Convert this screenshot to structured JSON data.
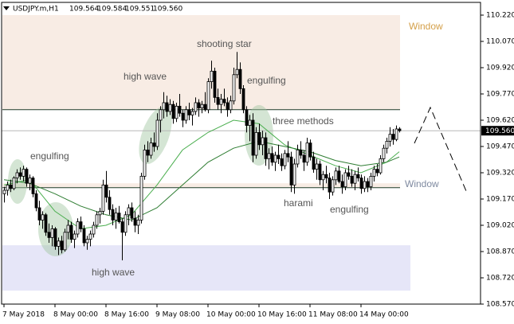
{
  "chart_data": {
    "type": "candlestick",
    "title": "USDJPY.m,H1",
    "header_values": [
      "109.564",
      "109.584",
      "109.551",
      "109.560"
    ],
    "ylim": [
      108.57,
      110.22
    ],
    "yticks": [
      {
        "value": 110.22,
        "label": "110.220"
      },
      {
        "value": 110.07,
        "label": "110.070"
      },
      {
        "value": 109.92,
        "label": "109.920"
      },
      {
        "value": 109.77,
        "label": "109.770"
      },
      {
        "value": 109.62,
        "label": "109.620"
      },
      {
        "value": 109.47,
        "label": "109.470"
      },
      {
        "value": 109.32,
        "label": "109.320"
      },
      {
        "value": 109.17,
        "label": "109.170"
      },
      {
        "value": 109.02,
        "label": "109.020"
      },
      {
        "value": 108.87,
        "label": "108.870"
      },
      {
        "value": 108.72,
        "label": "108.720"
      },
      {
        "value": 108.57,
        "label": "108.570"
      }
    ],
    "current_price": {
      "value": 109.56,
      "label": "109.560"
    },
    "up_color": "#ffffff",
    "down_color": "#000000",
    "categories": [
      "7 May 2018",
      null,
      null,
      null,
      null,
      null,
      null,
      null,
      null,
      null,
      null,
      null,
      null,
      null,
      null,
      null,
      "8 May 00:00",
      null,
      null,
      null,
      null,
      null,
      null,
      null,
      null,
      null,
      null,
      null,
      null,
      null,
      null,
      null,
      "8 May 16:00",
      null,
      null,
      null,
      null,
      null,
      null,
      null,
      null,
      null,
      null,
      null,
      null,
      null,
      null,
      null,
      "9 May 08:00",
      null,
      null,
      null,
      null,
      null,
      null,
      null,
      null,
      null,
      null,
      null,
      null,
      null,
      null,
      null,
      "10 May 00:00",
      null,
      null,
      null,
      null,
      null,
      null,
      null,
      null,
      null,
      null,
      null,
      null,
      null,
      null,
      null,
      "10 May 16:00",
      null,
      null,
      null,
      null,
      null,
      null,
      null,
      null,
      null,
      null,
      null,
      null,
      null,
      null,
      null,
      "11 May 08:00",
      null,
      null,
      null,
      null,
      null,
      null,
      null,
      null,
      null,
      null,
      null,
      null,
      null,
      null,
      null,
      "14 May 00:00",
      null,
      null,
      null,
      null,
      null,
      null,
      null,
      null,
      null,
      null,
      null,
      null
    ],
    "candles": [
      [
        109.2,
        109.24,
        109.15,
        109.22
      ],
      [
        109.22,
        109.27,
        109.19,
        109.25
      ],
      [
        109.25,
        109.28,
        109.21,
        109.23
      ],
      [
        109.23,
        109.3,
        109.22,
        109.29
      ],
      [
        109.29,
        109.34,
        109.26,
        109.32
      ],
      [
        109.32,
        109.35,
        109.28,
        109.3
      ],
      [
        109.3,
        109.36,
        109.27,
        109.34
      ],
      [
        109.34,
        109.35,
        109.24,
        109.26
      ],
      [
        109.26,
        109.31,
        109.22,
        109.29
      ],
      [
        109.29,
        109.3,
        109.18,
        109.2
      ],
      [
        109.2,
        109.22,
        109.1,
        109.12
      ],
      [
        109.12,
        109.16,
        109.02,
        109.05
      ],
      [
        109.05,
        109.1,
        109.0,
        109.08
      ],
      [
        109.08,
        109.09,
        108.96,
        108.98
      ],
      [
        108.98,
        109.03,
        108.92,
        108.95
      ],
      [
        108.95,
        109.02,
        108.9,
        109.0
      ],
      [
        109.0,
        109.01,
        108.88,
        108.9
      ],
      [
        108.9,
        108.95,
        108.85,
        108.93
      ],
      [
        108.93,
        108.96,
        108.86,
        108.88
      ],
      [
        108.88,
        109.0,
        108.87,
        108.98
      ],
      [
        108.98,
        109.05,
        108.94,
        109.02
      ],
      [
        109.02,
        109.04,
        108.92,
        108.94
      ],
      [
        108.94,
        108.99,
        108.89,
        108.97
      ],
      [
        108.97,
        109.06,
        108.95,
        109.04
      ],
      [
        109.04,
        109.07,
        108.98,
        109.0
      ],
      [
        109.0,
        109.02,
        108.9,
        108.92
      ],
      [
        108.92,
        108.96,
        108.88,
        108.94
      ],
      [
        108.94,
        108.99,
        108.9,
        108.97
      ],
      [
        108.97,
        109.04,
        108.95,
        109.02
      ],
      [
        109.02,
        109.1,
        109.0,
        109.08
      ],
      [
        109.08,
        109.12,
        109.03,
        109.1
      ],
      [
        109.1,
        109.28,
        109.08,
        109.25
      ],
      [
        109.25,
        109.33,
        109.15,
        109.18
      ],
      [
        109.18,
        109.22,
        109.08,
        109.11
      ],
      [
        109.11,
        109.14,
        109.02,
        109.05
      ],
      [
        109.05,
        109.12,
        109.0,
        109.09
      ],
      [
        109.09,
        109.13,
        109.03,
        109.04
      ],
      [
        109.04,
        109.06,
        108.82,
        108.98
      ],
      [
        108.98,
        109.1,
        108.96,
        109.08
      ],
      [
        109.08,
        109.14,
        109.02,
        109.12
      ],
      [
        109.12,
        109.15,
        109.04,
        109.06
      ],
      [
        109.06,
        109.1,
        108.98,
        109.02
      ],
      [
        109.02,
        109.08,
        108.97,
        109.05
      ],
      [
        109.05,
        109.32,
        109.03,
        109.3
      ],
      [
        109.3,
        109.48,
        109.28,
        109.45
      ],
      [
        109.45,
        109.5,
        109.38,
        109.42
      ],
      [
        109.42,
        109.52,
        109.4,
        109.49
      ],
      [
        109.49,
        109.55,
        109.44,
        109.47
      ],
      [
        109.47,
        109.66,
        109.45,
        109.62
      ],
      [
        109.62,
        109.7,
        109.55,
        109.68
      ],
      [
        109.68,
        109.78,
        109.63,
        109.72
      ],
      [
        109.72,
        109.76,
        109.64,
        109.67
      ],
      [
        109.67,
        109.74,
        109.65,
        109.71
      ],
      [
        109.71,
        109.73,
        109.6,
        109.63
      ],
      [
        109.63,
        109.72,
        109.61,
        109.7
      ],
      [
        109.7,
        109.77,
        109.64,
        109.66
      ],
      [
        109.66,
        109.68,
        109.58,
        109.62
      ],
      [
        109.62,
        109.7,
        109.6,
        109.68
      ],
      [
        109.68,
        109.72,
        109.62,
        109.65
      ],
      [
        109.65,
        109.69,
        109.59,
        109.67
      ],
      [
        109.67,
        109.75,
        109.65,
        109.72
      ],
      [
        109.72,
        109.74,
        109.64,
        109.69
      ],
      [
        109.69,
        109.73,
        109.66,
        109.71
      ],
      [
        109.71,
        109.78,
        109.67,
        109.68
      ],
      [
        109.68,
        109.86,
        109.66,
        109.84
      ],
      [
        109.84,
        109.96,
        109.8,
        109.9
      ],
      [
        109.9,
        109.92,
        109.72,
        109.75
      ],
      [
        109.75,
        109.8,
        109.68,
        109.71
      ],
      [
        109.71,
        109.77,
        109.66,
        109.74
      ],
      [
        109.74,
        109.8,
        109.7,
        109.72
      ],
      [
        109.72,
        109.75,
        109.64,
        109.68
      ],
      [
        109.68,
        109.76,
        109.66,
        109.73
      ],
      [
        109.73,
        109.92,
        109.71,
        109.88
      ],
      [
        109.88,
        110.01,
        109.86,
        109.91
      ],
      [
        109.91,
        109.95,
        109.77,
        109.8
      ],
      [
        109.8,
        109.82,
        109.66,
        109.68
      ],
      [
        109.68,
        109.7,
        109.55,
        109.59
      ],
      [
        109.59,
        109.65,
        109.5,
        109.62
      ],
      [
        109.62,
        109.66,
        109.38,
        109.42
      ],
      [
        109.42,
        109.58,
        109.4,
        109.55
      ],
      [
        109.55,
        109.6,
        109.45,
        109.48
      ],
      [
        109.48,
        109.56,
        109.42,
        109.52
      ],
      [
        109.52,
        109.55,
        109.36,
        109.4
      ],
      [
        109.4,
        109.46,
        109.34,
        109.43
      ],
      [
        109.43,
        109.47,
        109.36,
        109.38
      ],
      [
        109.38,
        109.44,
        109.33,
        109.42
      ],
      [
        109.42,
        109.48,
        109.37,
        109.4
      ],
      [
        109.4,
        109.43,
        109.33,
        109.36
      ],
      [
        109.36,
        109.45,
        109.34,
        109.43
      ],
      [
        109.43,
        109.5,
        109.38,
        109.41
      ],
      [
        109.41,
        109.44,
        109.21,
        109.25
      ],
      [
        109.25,
        109.4,
        109.2,
        109.37
      ],
      [
        109.37,
        109.48,
        109.35,
        109.45
      ],
      [
        109.45,
        109.5,
        109.4,
        109.42
      ],
      [
        109.42,
        109.45,
        109.33,
        109.38
      ],
      [
        109.38,
        109.52,
        109.36,
        109.49
      ],
      [
        109.49,
        109.51,
        109.39,
        109.41
      ],
      [
        109.41,
        109.44,
        109.32,
        109.34
      ],
      [
        109.34,
        109.4,
        109.28,
        109.37
      ],
      [
        109.37,
        109.39,
        109.25,
        109.28
      ],
      [
        109.28,
        109.33,
        109.22,
        109.31
      ],
      [
        109.31,
        109.36,
        109.26,
        109.29
      ],
      [
        109.29,
        109.32,
        109.17,
        109.21
      ],
      [
        109.21,
        109.3,
        109.19,
        109.28
      ],
      [
        109.28,
        109.35,
        109.25,
        109.33
      ],
      [
        109.33,
        109.36,
        109.26,
        109.27
      ],
      [
        109.27,
        109.31,
        109.2,
        109.24
      ],
      [
        109.24,
        109.34,
        109.22,
        109.32
      ],
      [
        109.32,
        109.36,
        109.28,
        109.3
      ],
      [
        109.3,
        109.34,
        109.24,
        109.26
      ],
      [
        109.26,
        109.33,
        109.22,
        109.31
      ],
      [
        109.31,
        109.35,
        109.27,
        109.29
      ],
      [
        109.29,
        109.31,
        109.2,
        109.23
      ],
      [
        109.23,
        109.3,
        109.21,
        109.27
      ],
      [
        109.27,
        109.29,
        109.21,
        109.24
      ],
      [
        109.24,
        109.32,
        109.22,
        109.3
      ],
      [
        109.3,
        109.36,
        109.27,
        109.34
      ],
      [
        109.34,
        109.37,
        109.3,
        109.32
      ],
      [
        109.32,
        109.42,
        109.31,
        109.4
      ],
      [
        109.4,
        109.48,
        109.38,
        109.46
      ],
      [
        109.46,
        109.52,
        109.43,
        109.5
      ],
      [
        109.5,
        109.58,
        109.47,
        109.54
      ],
      [
        109.54,
        109.57,
        109.48,
        109.51
      ],
      [
        109.51,
        109.59,
        109.5,
        109.57
      ],
      [
        109.57,
        109.58,
        109.55,
        109.56
      ]
    ],
    "ma_lines": [
      {
        "color": "#4caf50",
        "x": [
          0,
          8,
          16,
          24,
          32,
          40,
          48,
          56,
          64,
          72,
          80,
          88,
          96,
          104,
          112,
          120,
          124
        ],
        "values": [
          109.25,
          109.28,
          109.1,
          109.0,
          109.02,
          109.08,
          109.25,
          109.45,
          109.55,
          109.62,
          109.6,
          109.48,
          109.42,
          109.36,
          109.32,
          109.38,
          109.44
        ]
      },
      {
        "color": "#2e7d32",
        "x": [
          0,
          8,
          16,
          24,
          32,
          40,
          48,
          56,
          64,
          72,
          80,
          88,
          96,
          104,
          112,
          120,
          124
        ],
        "values": [
          109.28,
          109.26,
          109.2,
          109.13,
          109.08,
          109.05,
          109.12,
          109.25,
          109.38,
          109.46,
          109.5,
          109.47,
          109.44,
          109.39,
          109.36,
          109.38,
          109.41
        ]
      }
    ],
    "zones": [
      {
        "y0": 110.22,
        "y1": 109.68,
        "color": "#f8ece4"
      },
      {
        "y0": 109.26,
        "y1": 109.235,
        "color": "#f8ece4"
      },
      {
        "y0": 108.906,
        "y1": 108.647,
        "color": "#e6e6f8"
      }
    ],
    "levels": [
      109.68,
      109.235
    ],
    "annotations": [
      {
        "text": "Window",
        "color": "#d4a04a"
      },
      {
        "text": "shooting star",
        "color": "#555555"
      },
      {
        "text": "high wave",
        "color": "#555555"
      },
      {
        "text": "engulfing",
        "color": "#555555"
      },
      {
        "text": "three methods",
        "color": "#555555"
      },
      {
        "text": "engulfing",
        "color": "#555555"
      },
      {
        "text": "Window",
        "color": "#7f8aa0"
      },
      {
        "text": "harami",
        "color": "#555555"
      },
      {
        "text": "engulfing",
        "color": "#555555"
      },
      {
        "text": "high wave",
        "color": "#555555"
      }
    ]
  }
}
